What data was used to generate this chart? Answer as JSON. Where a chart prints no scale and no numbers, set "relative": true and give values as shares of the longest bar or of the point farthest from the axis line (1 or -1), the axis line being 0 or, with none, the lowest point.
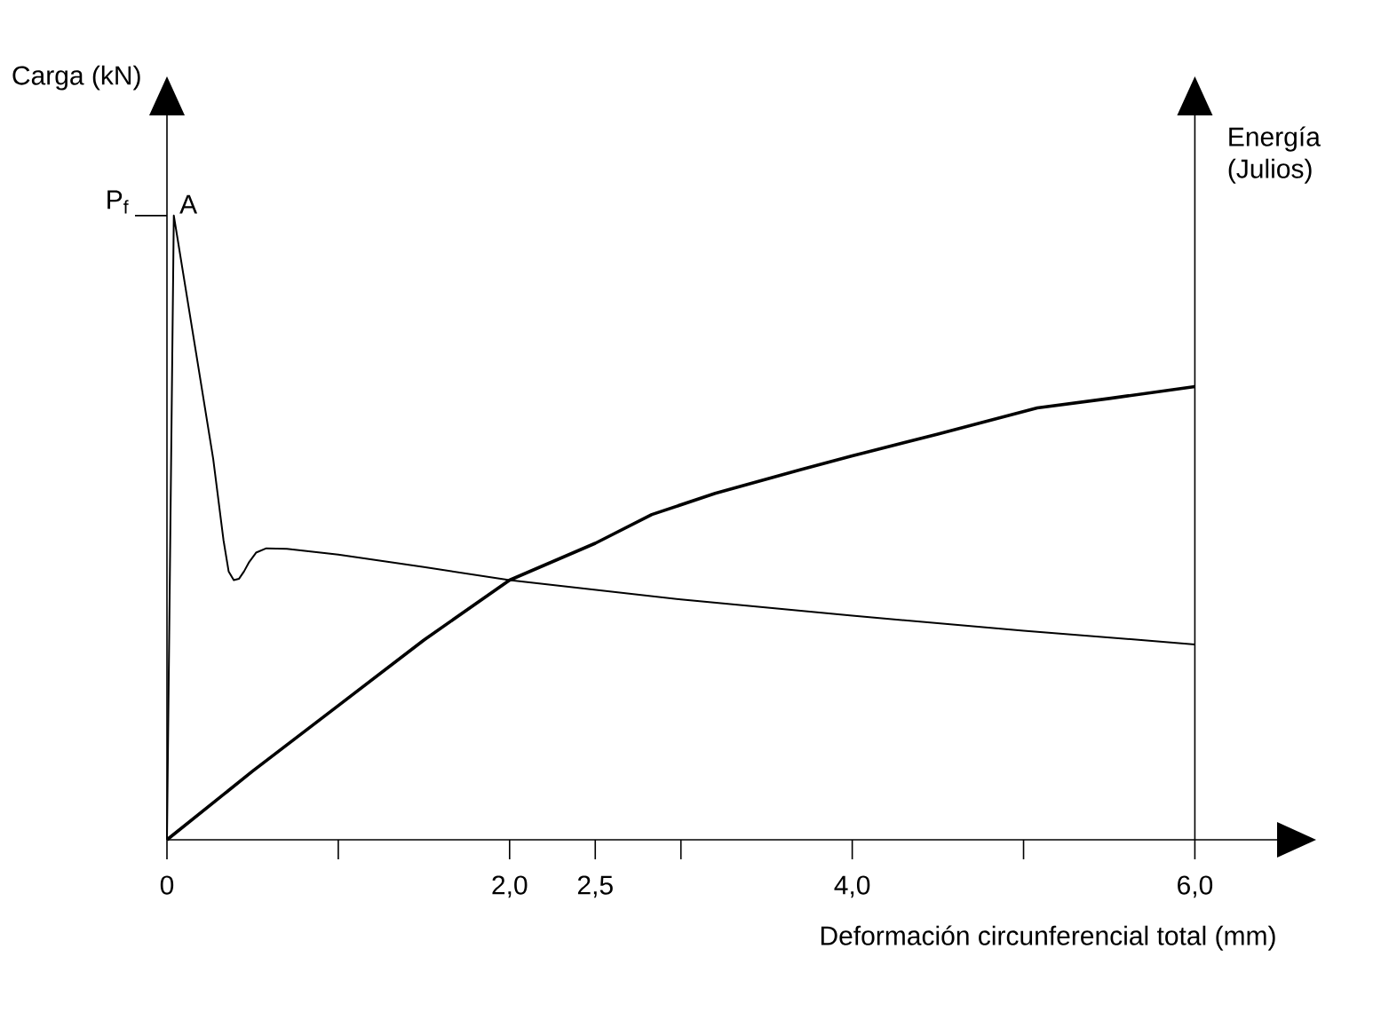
{
  "chart_data": {
    "type": "line",
    "relative": true,
    "xlabel": "Deformación circunferencial total  (mm)",
    "ylabel": "Carga (kN)",
    "y2label": "Energía (Julios)",
    "xlim": [
      0,
      6.48
    ],
    "xticks": [
      0,
      {
        "value": 1,
        "label": null
      },
      {
        "value": 2,
        "label": "2,0"
      },
      {
        "value": 2.5,
        "label": "2,5"
      },
      {
        "value": 3,
        "label": null
      },
      {
        "value": 4,
        "label": "4,0"
      },
      {
        "value": 5,
        "label": null
      },
      {
        "value": 6,
        "label": "6,0"
      }
    ],
    "series": [
      {
        "color": "#000000",
        "x": [
          0,
          0.02,
          0.04,
          0.17,
          0.27,
          0.33,
          0.36,
          0.39,
          0.42,
          0.45,
          0.48,
          0.52,
          0.58,
          0.7,
          1.0,
          1.5,
          2.0,
          3.0,
          4.0,
          5.0,
          6.0
        ],
        "values": [
          0,
          0.5,
          1.0,
          0.78,
          0.61,
          0.48,
          0.43,
          0.416,
          0.418,
          0.43,
          0.445,
          0.46,
          0.467,
          0.466,
          0.457,
          0.437,
          0.416,
          0.385,
          0.359,
          0.335,
          0.313
        ]
      },
      {
        "color": "#000000",
        "axis": "y2",
        "x": [
          0,
          0.5,
          1.0,
          1.5,
          2.0,
          2.5,
          2.83,
          3.2,
          3.7,
          4.0,
          4.5,
          5.08,
          5.5,
          6.0
        ],
        "values": [
          0,
          0.11,
          0.215,
          0.32,
          0.416,
          0.475,
          0.521,
          0.555,
          0.593,
          0.615,
          0.65,
          0.692,
          0.707,
          0.726
        ]
      }
    ],
    "annotations": [
      {
        "text": "P$_{f}$",
        "x": 0,
        "y": 1
      },
      {
        "text": "A",
        "x": 0.04,
        "y": 1
      }
    ],
    "marker": "none",
    "line_style": "solid"
  }
}
